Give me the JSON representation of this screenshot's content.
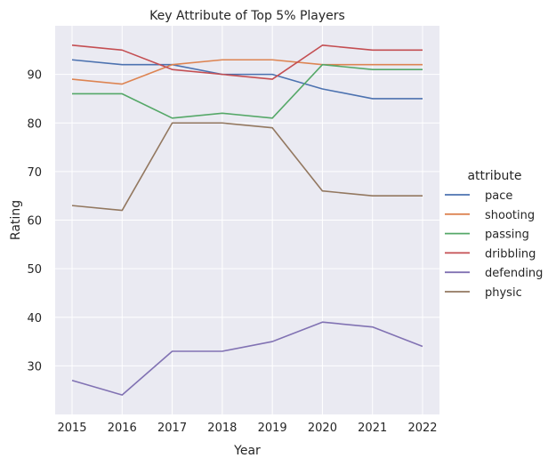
{
  "chart_data": {
    "type": "line",
    "title": "Key Attribute of Top 5% Players",
    "xlabel": "Year",
    "ylabel": "Rating",
    "x": [
      2015,
      2016,
      2017,
      2018,
      2019,
      2020,
      2021,
      2022
    ],
    "ylim": [
      20,
      100
    ],
    "yticks": [
      30,
      40,
      50,
      60,
      70,
      80,
      90
    ],
    "grid": true,
    "legend": {
      "title": "attribute",
      "placement": "right"
    },
    "series": [
      {
        "name": "pace",
        "color": "#4c72b0",
        "values": [
          93,
          92,
          92,
          90,
          90,
          87,
          85,
          85
        ]
      },
      {
        "name": "shooting",
        "color": "#dd8452",
        "values": [
          89,
          88,
          92,
          93,
          93,
          92,
          92,
          92
        ]
      },
      {
        "name": "passing",
        "color": "#55a868",
        "values": [
          86,
          86,
          81,
          82,
          81,
          92,
          91,
          91
        ]
      },
      {
        "name": "dribbling",
        "color": "#c44e52",
        "values": [
          96,
          95,
          91,
          90,
          89,
          96,
          95,
          95
        ]
      },
      {
        "name": "defending",
        "color": "#8172b3",
        "values": [
          27,
          24,
          33,
          33,
          35,
          39,
          38,
          34
        ]
      },
      {
        "name": "physic",
        "color": "#937860",
        "values": [
          63,
          62,
          80,
          80,
          79,
          66,
          65,
          65
        ]
      }
    ],
    "background": "#eaeaf2"
  }
}
